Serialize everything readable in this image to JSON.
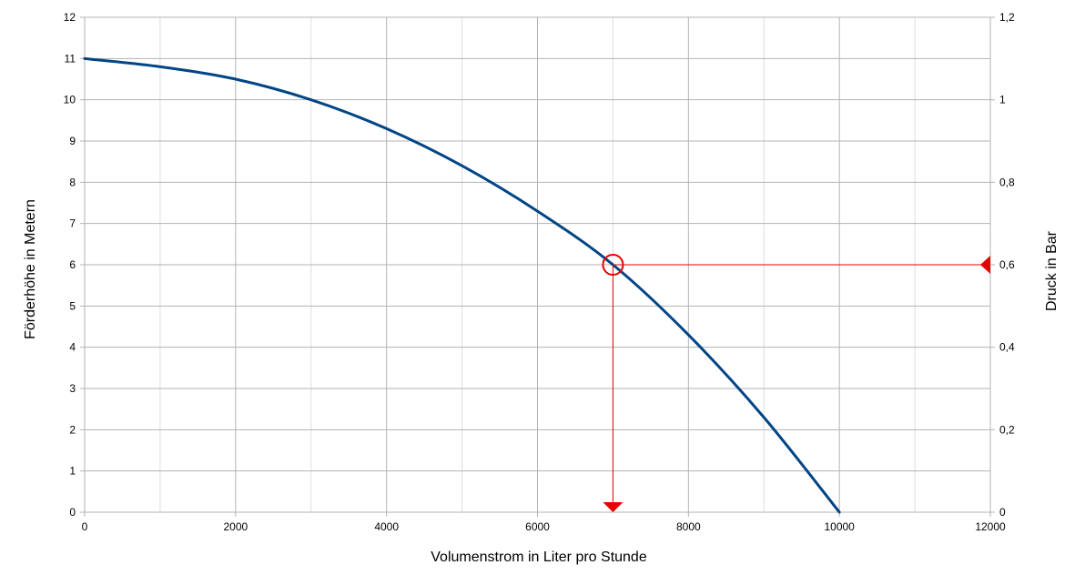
{
  "chart_data": {
    "type": "line",
    "title": "",
    "xlabel": "Volumenstrom in Liter pro Stunde",
    "ylabel": "Förderhöhe in Metern",
    "y2label": "Druck in Bar",
    "xlim": [
      0,
      12000
    ],
    "ylim": [
      0,
      12
    ],
    "y2lim": [
      0,
      1.2
    ],
    "x_ticks": [
      "0",
      "2000",
      "4000",
      "6000",
      "8000",
      "10000",
      "12000"
    ],
    "y_ticks": [
      "0",
      "1",
      "2",
      "3",
      "4",
      "5",
      "6",
      "7",
      "8",
      "9",
      "10",
      "11",
      "12"
    ],
    "y2_ticks": [
      "0",
      "0,2",
      "0,4",
      "0,6",
      "0,8",
      "1",
      "1,2"
    ],
    "grid": true,
    "legend": "none",
    "series": [
      {
        "x": [
          0,
          1000,
          2000,
          3000,
          4000,
          5000,
          6000,
          7000,
          8000,
          9000,
          10000
        ],
        "y": [
          11,
          10.8,
          10.5,
          10.0,
          9.3,
          8.4,
          7.3,
          6.0,
          4.3,
          2.3,
          0
        ],
        "color": "#004586"
      }
    ],
    "annotation": {
      "operating_point": {
        "x": 7000,
        "y": 6
      },
      "y2_value": 0.6,
      "color": "#e60000"
    }
  }
}
